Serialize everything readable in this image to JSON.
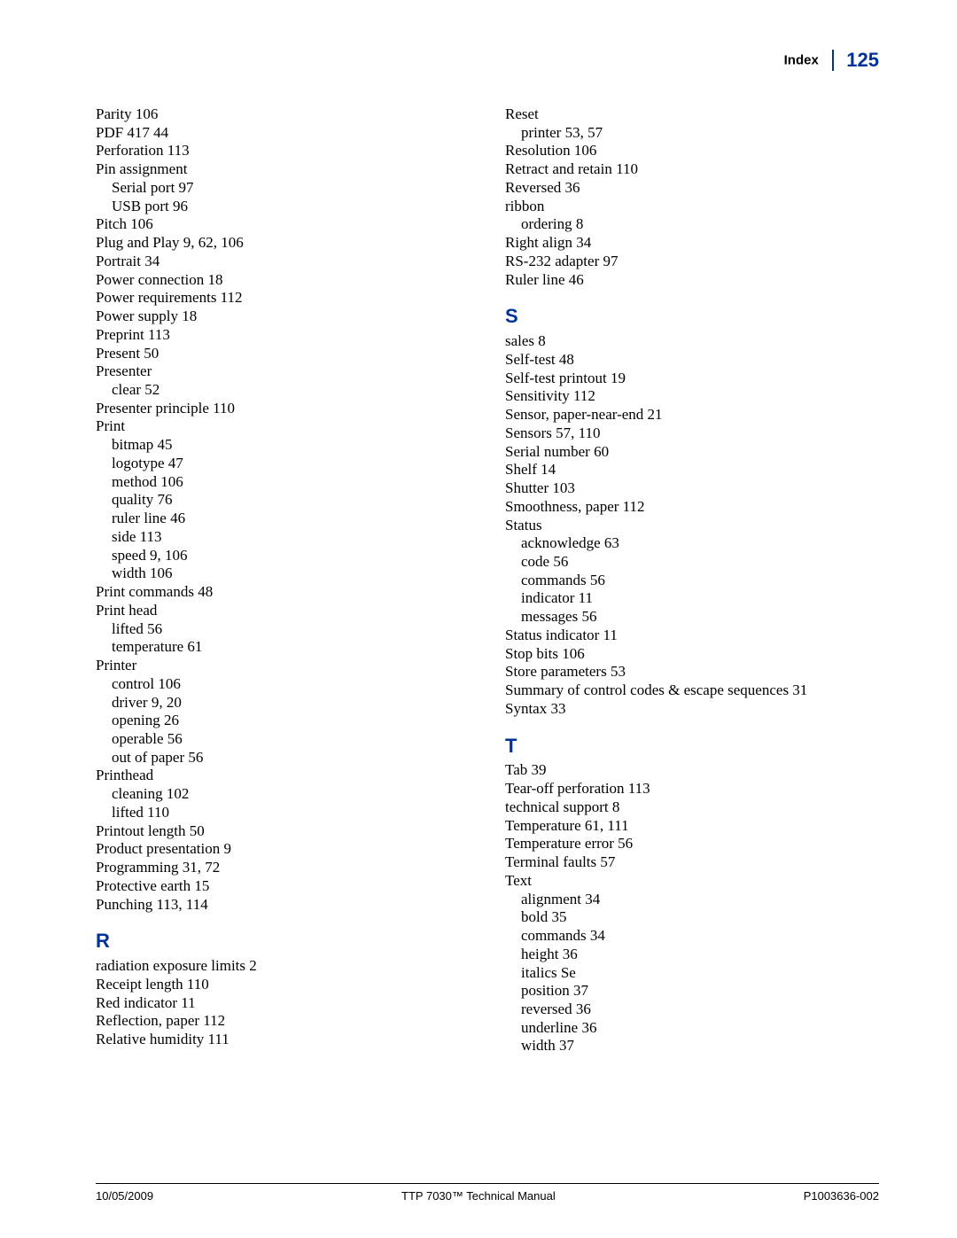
{
  "header": {
    "label": "Index",
    "page": "125"
  },
  "footer": {
    "date": "10/05/2009",
    "title": "TTP 7030™ Technical Manual",
    "doc": "P1003636-002"
  },
  "sections": {
    "P_cont": [
      {
        "t": "Parity 106"
      },
      {
        "t": "PDF 417 44"
      },
      {
        "t": "Perforation 113"
      },
      {
        "t": "Pin assignment"
      },
      {
        "t": "Serial port 97",
        "s": 1
      },
      {
        "t": "USB port 96",
        "s": 1
      },
      {
        "t": "Pitch 106"
      },
      {
        "t": "Plug and Play 9, 62, 106"
      },
      {
        "t": "Portrait 34"
      },
      {
        "t": "Power connection 18"
      },
      {
        "t": "Power requirements 112"
      },
      {
        "t": "Power supply 18"
      },
      {
        "t": "Preprint 113"
      },
      {
        "t": "Present 50"
      },
      {
        "t": "Presenter"
      },
      {
        "t": "clear 52",
        "s": 1
      },
      {
        "t": "Presenter principle 110"
      },
      {
        "t": "Print"
      },
      {
        "t": "bitmap 45",
        "s": 1
      },
      {
        "t": "logotype 47",
        "s": 1
      },
      {
        "t": "method 106",
        "s": 1
      },
      {
        "t": "quality 76",
        "s": 1
      },
      {
        "t": "ruler line 46",
        "s": 1
      },
      {
        "t": "side 113",
        "s": 1
      },
      {
        "t": "speed 9, 106",
        "s": 1
      },
      {
        "t": "width 106",
        "s": 1
      },
      {
        "t": "Print commands 48"
      },
      {
        "t": "Print head"
      },
      {
        "t": "lifted 56",
        "s": 1
      },
      {
        "t": "temperature 61",
        "s": 1
      },
      {
        "t": "Printer"
      },
      {
        "t": "control 106",
        "s": 1
      },
      {
        "t": "driver 9, 20",
        "s": 1
      },
      {
        "t": "opening 26",
        "s": 1
      },
      {
        "t": "operable 56",
        "s": 1
      },
      {
        "t": "out of paper 56",
        "s": 1
      },
      {
        "t": "Printhead"
      },
      {
        "t": "cleaning 102",
        "s": 1
      },
      {
        "t": "lifted 110",
        "s": 1
      },
      {
        "t": "Printout length 50"
      },
      {
        "t": "Product presentation 9"
      },
      {
        "t": "Programming 31, 72"
      },
      {
        "t": "Protective earth 15"
      },
      {
        "t": "Punching 113, 114"
      }
    ],
    "R": [
      {
        "t": "radiation exposure limits 2"
      },
      {
        "t": "Receipt length 110"
      },
      {
        "t": "Red indicator 11"
      },
      {
        "t": "Reflection, paper 112"
      },
      {
        "t": "Relative humidity 111"
      }
    ],
    "R_cont": [
      {
        "t": "Reset"
      },
      {
        "t": "printer 53, 57",
        "s": 1
      },
      {
        "t": "Resolution 106"
      },
      {
        "t": "Retract and retain 110"
      },
      {
        "t": "Reversed 36"
      },
      {
        "t": "ribbon"
      },
      {
        "t": "ordering 8",
        "s": 1
      },
      {
        "t": "Right align 34"
      },
      {
        "t": "RS-232 adapter 97"
      },
      {
        "t": "Ruler line 46"
      }
    ],
    "S": [
      {
        "t": "sales 8"
      },
      {
        "t": "Self-test 48"
      },
      {
        "t": "Self-test printout 19"
      },
      {
        "t": "Sensitivity 112"
      },
      {
        "t": "Sensor, paper-near-end 21"
      },
      {
        "t": "Sensors 57, 110"
      },
      {
        "t": "Serial number 60"
      },
      {
        "t": "Shelf 14"
      },
      {
        "t": "Shutter 103"
      },
      {
        "t": "Smoothness, paper 112"
      },
      {
        "t": "Status"
      },
      {
        "t": "acknowledge 63",
        "s": 1
      },
      {
        "t": "code 56",
        "s": 1
      },
      {
        "t": "commands 56",
        "s": 1
      },
      {
        "t": "indicator 11",
        "s": 1
      },
      {
        "t": "messages 56",
        "s": 1
      },
      {
        "t": "Status indicator 11"
      },
      {
        "t": "Stop bits 106"
      },
      {
        "t": "Store parameters 53"
      },
      {
        "t": "Summary of control codes & escape sequences 31"
      },
      {
        "t": "Syntax 33"
      }
    ],
    "T": [
      {
        "t": "Tab 39"
      },
      {
        "t": "Tear-off perforation 113"
      },
      {
        "t": "technical support 8"
      },
      {
        "t": "Temperature 61, 111"
      },
      {
        "t": "Temperature error 56"
      },
      {
        "t": "Terminal faults 57"
      },
      {
        "t": "Text"
      },
      {
        "t": "alignment 34",
        "s": 1
      },
      {
        "t": "bold 35",
        "s": 1
      },
      {
        "t": "commands 34",
        "s": 1
      },
      {
        "t": "height 36",
        "s": 1
      },
      {
        "t": "italics Se",
        "s": 1
      },
      {
        "t": "position 37",
        "s": 1
      },
      {
        "t": "reversed 36",
        "s": 1
      },
      {
        "t": "underline 36",
        "s": 1
      },
      {
        "t": "width 37",
        "s": 1
      }
    ]
  }
}
